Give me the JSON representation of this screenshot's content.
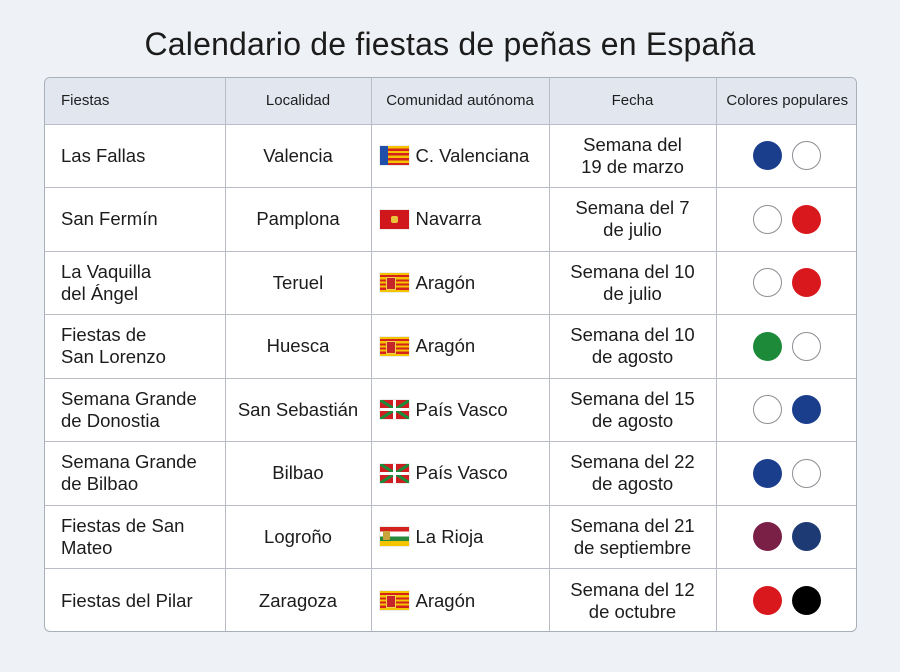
{
  "title": "Calendario de fiestas de peñas en España",
  "headers": {
    "fiestas": "Fiestas",
    "localidad": "Localidad",
    "comunidad": "Comunidad autónoma",
    "fecha": "Fecha",
    "colores": "Colores populares"
  },
  "rows": [
    {
      "fiesta": "Las Fallas",
      "localidad": "Valencia",
      "comunidad": "C. Valenciana",
      "flag": "valencia-flag-icon",
      "fecha": "Semana del\n19 de marzo",
      "colors": [
        "#1a3e8c",
        "#ffffff"
      ]
    },
    {
      "fiesta": "San Fermín",
      "localidad": "Pamplona",
      "comunidad": "Navarra",
      "flag": "navarra-flag-icon",
      "fecha": "Semana del 7\nde julio",
      "colors": [
        "#ffffff",
        "#d9181e"
      ]
    },
    {
      "fiesta": "La Vaquilla\ndel Ángel",
      "localidad": "Teruel",
      "comunidad": "Aragón",
      "flag": "aragon-flag-icon",
      "fecha": "Semana del 10\nde julio",
      "colors": [
        "#ffffff",
        "#d9181e"
      ]
    },
    {
      "fiesta": "Fiestas de\nSan Lorenzo",
      "localidad": "Huesca",
      "comunidad": "Aragón",
      "flag": "aragon-flag-icon",
      "fecha": "Semana del 10\nde agosto",
      "colors": [
        "#1d8a3a",
        "#ffffff"
      ]
    },
    {
      "fiesta": "Semana Grande\nde Donostia",
      "localidad": "San Sebastián",
      "comunidad": "País Vasco",
      "flag": "pais-vasco-flag-icon",
      "fecha": "Semana del 15\nde agosto",
      "colors": [
        "#ffffff",
        "#1a3e8c"
      ]
    },
    {
      "fiesta": "Semana Grande\nde Bilbao",
      "localidad": "Bilbao",
      "comunidad": "País Vasco",
      "flag": "pais-vasco-flag-icon",
      "fecha": "Semana del 22\nde agosto",
      "colors": [
        "#1a3e8c",
        "#ffffff"
      ]
    },
    {
      "fiesta": "Fiestas de San\nMateo",
      "localidad": "Logroño",
      "comunidad": "La Rioja",
      "flag": "la-rioja-flag-icon",
      "fecha": "Semana del 21\nde septiembre",
      "colors": [
        "#7a1f45",
        "#1d3a74"
      ]
    },
    {
      "fiesta": "Fiestas del Pilar",
      "localidad": "Zaragoza",
      "comunidad": "Aragón",
      "flag": "aragon-flag-icon",
      "fecha": "Semana del 12\nde octubre",
      "colors": [
        "#d9181e",
        "#000000"
      ]
    }
  ]
}
